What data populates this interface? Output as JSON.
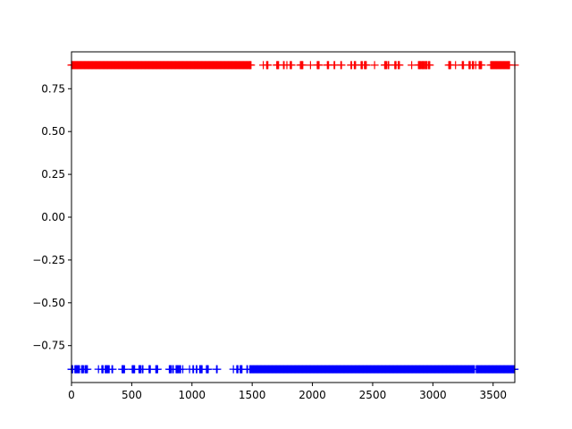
{
  "chart_data": {
    "type": "scatter",
    "title": "",
    "xlabel": "",
    "ylabel": "",
    "xlim": [
      0,
      3680
    ],
    "ylim": [
      -0.9655,
      0.9655
    ],
    "grid": false,
    "legend": "none",
    "marker": "+",
    "x_ticks": [
      0,
      500,
      1000,
      1500,
      2000,
      2500,
      3000,
      3500
    ],
    "x_tick_labels": [
      "0",
      "500",
      "1000",
      "1500",
      "2000",
      "2500",
      "3000",
      "3500"
    ],
    "y_ticks": [
      0.75,
      0.5,
      0.25,
      0,
      -0.25,
      -0.5,
      -0.75
    ],
    "y_tick_labels": [
      "0.75",
      "0.50",
      "0.25",
      "0.00",
      "−0.25",
      "−0.50",
      "−0.75"
    ],
    "series": [
      {
        "color": "#ff0000",
        "y": 0.8878,
        "x_dense_ranges": [
          [
            0,
            1480
          ],
          [
            3480,
            3640
          ]
        ],
        "x_sparse_ranges": [
          [
            1480,
            3480
          ]
        ],
        "x_isolated": [
          3680
        ]
      },
      {
        "color": "#0000ff",
        "y": -0.8878,
        "x_dense_ranges": [
          [
            1480,
            3340
          ],
          [
            3360,
            3680
          ]
        ],
        "x_sparse_ranges": [
          [
            0,
            1480
          ]
        ],
        "x_isolated": [
          0,
          3345
        ]
      }
    ]
  }
}
